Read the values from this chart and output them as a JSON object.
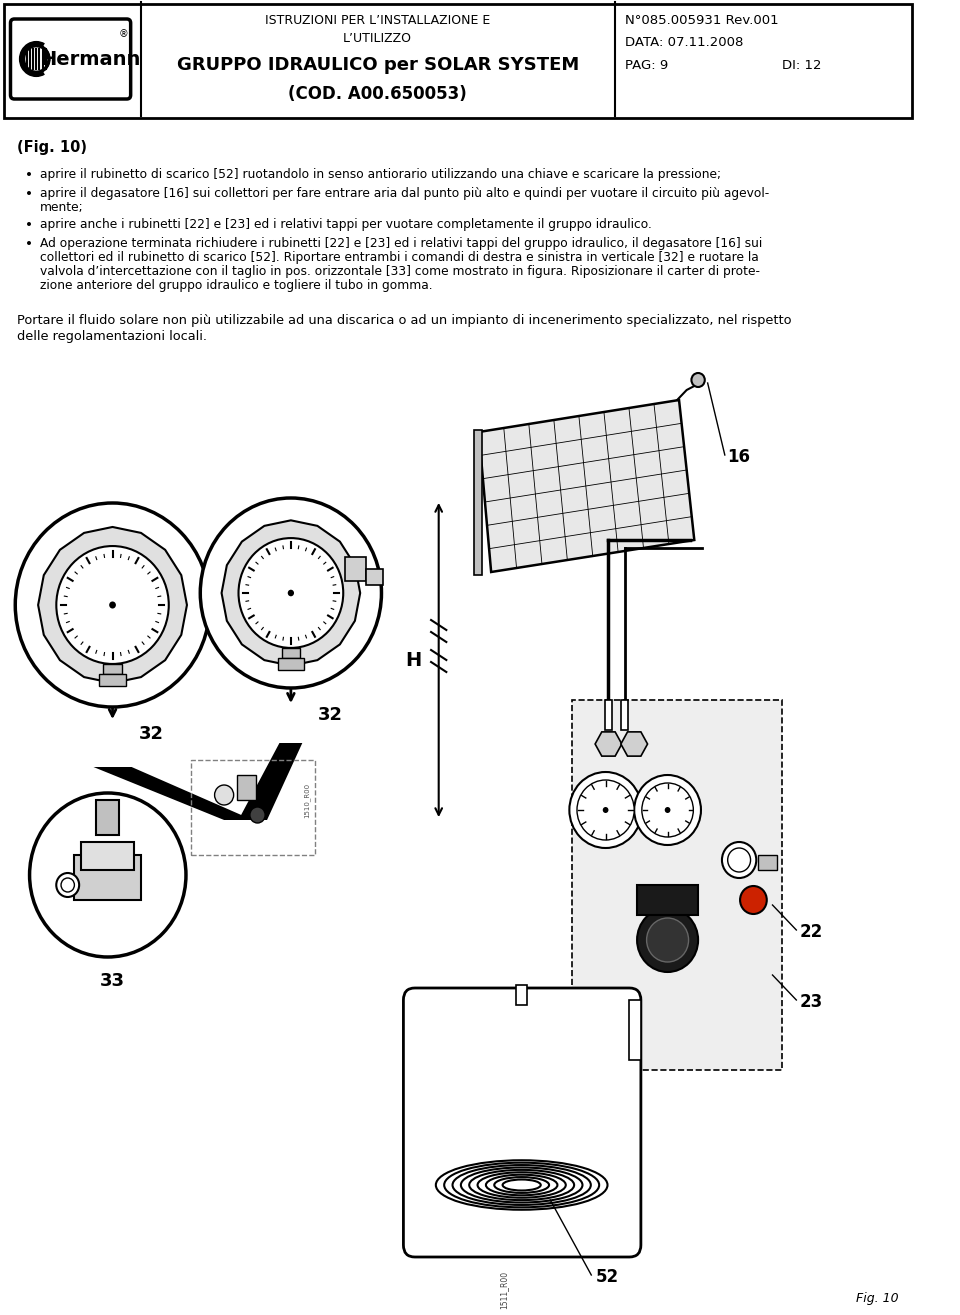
{
  "bg_color": "#ffffff",
  "header": {
    "center_line1": "ISTRUZIONI PER L’INSTALLAZIONE E",
    "center_line2": "L’UTILIZZO",
    "center_line3": "GRUPPO IDRAULICO per SOLAR SYSTEM",
    "center_line4": "(COD. A00.650053)",
    "right_line1": "N°085.005931 Rev.001",
    "right_line2": "DATA: 07.11.2008",
    "right_line3": "PAG: 9",
    "right_line3b": "DI: 12"
  },
  "fig_label": "(Fig. 10)",
  "bullet1": "aprire il rubinetto di scarico [52] ruotandolo in senso antiorario utilizzando una chiave e scaricare la pressione;",
  "bullet2a": "aprire il degasatore [16] sui collettori per fare entrare aria dal punto più alto e quindi per vuotare il circuito più agevol-",
  "bullet2b": "mente;",
  "bullet3": "aprire anche i rubinetti [22] e [23] ed i relativi tappi per vuotare completamente il gruppo idraulico.",
  "bullet4a": "Ad operazione terminata richiudere i rubinetti [22] e [23] ed i relativi tappi del gruppo idraulico, il degasatore [16] sui",
  "bullet4b": "collettori ed il rubinetto di scarico [52]. Riportare entrambi i comandi di destra e sinistra in verticale [32] e ruotare la",
  "bullet4c": "valvola d’intercettazione con il taglio in pos. orizzontale [33] come mostrato in figura. Riposizionare il carter di prote-",
  "bullet4d": "zione anteriore del gruppo idraulico e togliere il tubo in gomma.",
  "footer1": "Portare il fluido solare non più utilizzabile ad una discarica o ad un impianto di incenerimento specializzato, nel rispetto",
  "footer2": "delle regolamentazioni locali.",
  "fig_footer": "Fig. 10"
}
